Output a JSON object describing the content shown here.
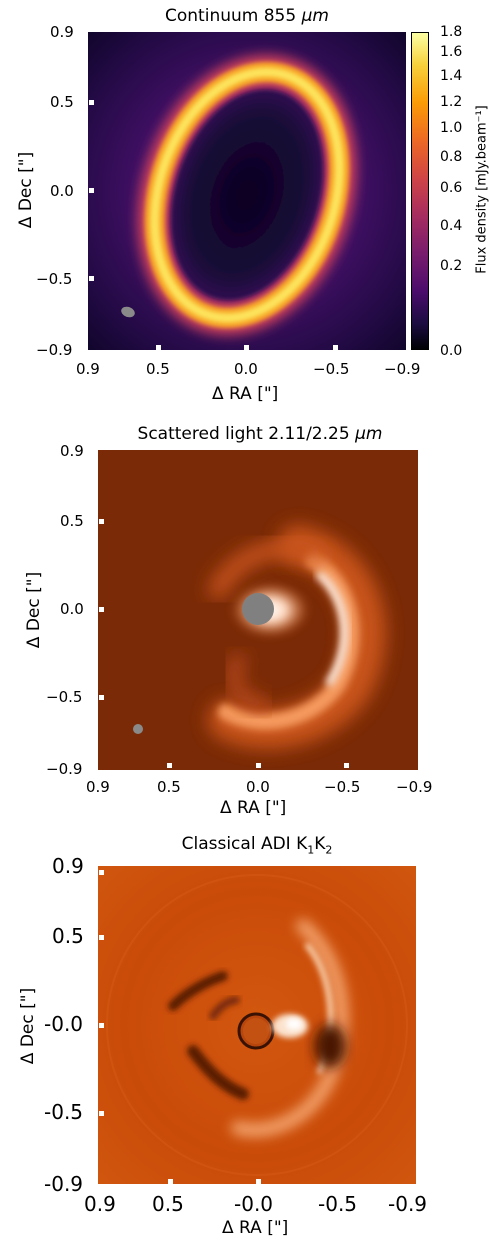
{
  "figure": {
    "panels": [
      {
        "title_prefix": "Continuum 855 ",
        "title_unit": "μm",
        "xlabel": "Δ RA [\"]",
        "ylabel": "Δ Dec [\"]",
        "xticks": [
          "0.9",
          "0.5",
          "0.0",
          "−0.5",
          "−0.9"
        ],
        "yticks": [
          "0.9",
          "0.5",
          "0.0",
          "−0.5",
          "−0.9"
        ],
        "colorbar": {
          "label": "Flux density [mJy.beam⁻¹]",
          "ticks": [
            "1.8",
            "1.6",
            "1.4",
            "1.2",
            "1.0",
            "0.8",
            "0.6",
            "0.4",
            "0.2",
            "0.0"
          ]
        }
      },
      {
        "title_prefix": "Scattered light 2.11/2.25 ",
        "title_unit": "μm",
        "xlabel": "Δ RA [\"]",
        "ylabel": "Δ Dec [\"]",
        "xticks": [
          "0.9",
          "0.5",
          "0.0",
          "−0.5",
          "−0.9"
        ],
        "yticks": [
          "0.9",
          "0.5",
          "0.0",
          "−0.5",
          "−0.9"
        ]
      },
      {
        "title_prefix": "Classical ADI K",
        "title_sub1": "1",
        "title_mid": "K",
        "title_sub2": "2",
        "xlabel": "Δ RA [\"]",
        "ylabel": "Δ Dec [\"]",
        "xticks": [
          "0.9",
          "0.5",
          "-0.0",
          "-0.5",
          "-0.9"
        ],
        "yticks": [
          "0.9",
          "0.5",
          "-0.0",
          "-0.5",
          "-0.9"
        ]
      }
    ]
  },
  "colors": {
    "inferno_dark": "#0b0424",
    "inferno_purple": "#4a1166",
    "inferno_ring": "#fcd34a",
    "scatter_bg": "#7a2a06",
    "adi_bg": "#c94b08",
    "star_mask": "#808080"
  }
}
